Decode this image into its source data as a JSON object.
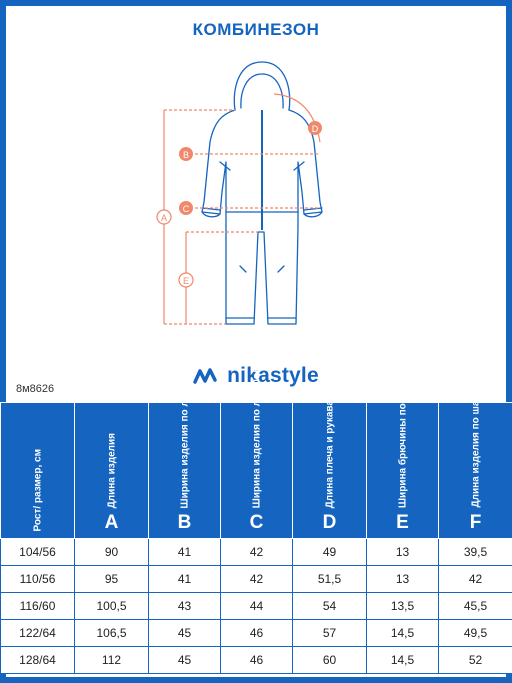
{
  "title": "КОМБИНЕЗОН",
  "brand": {
    "name": "nikastyle",
    "logo_icon": "nikastyle-logo-icon",
    "color": "#1565c0"
  },
  "article": "8м8626",
  "diagram": {
    "labels": [
      "A",
      "B",
      "C",
      "D",
      "E"
    ],
    "marker_color": "#f0896b",
    "outline_color": "#1565c0"
  },
  "table": {
    "first_header": "Рост/ размер, см",
    "columns": [
      {
        "letter": "A",
        "label": "Длина изделия"
      },
      {
        "letter": "B",
        "label": "Ширина изделия по линии груди"
      },
      {
        "letter": "C",
        "label": "Ширина изделия по линии бёдер"
      },
      {
        "letter": "D",
        "label": "Длина плеча и рукава"
      },
      {
        "letter": "E",
        "label": "Ширина брючины по низу"
      },
      {
        "letter": "F",
        "label": "Длина изделия по шаговому шву"
      }
    ],
    "rows": [
      [
        "104/56",
        "90",
        "41",
        "42",
        "49",
        "13",
        "39,5"
      ],
      [
        "110/56",
        "95",
        "41",
        "42",
        "51,5",
        "13",
        "42"
      ],
      [
        "116/60",
        "100,5",
        "43",
        "44",
        "54",
        "13,5",
        "45,5"
      ],
      [
        "122/64",
        "106,5",
        "45",
        "46",
        "57",
        "14,5",
        "49,5"
      ],
      [
        "128/64",
        "112",
        "45",
        "46",
        "60",
        "14,5",
        "52"
      ]
    ]
  }
}
